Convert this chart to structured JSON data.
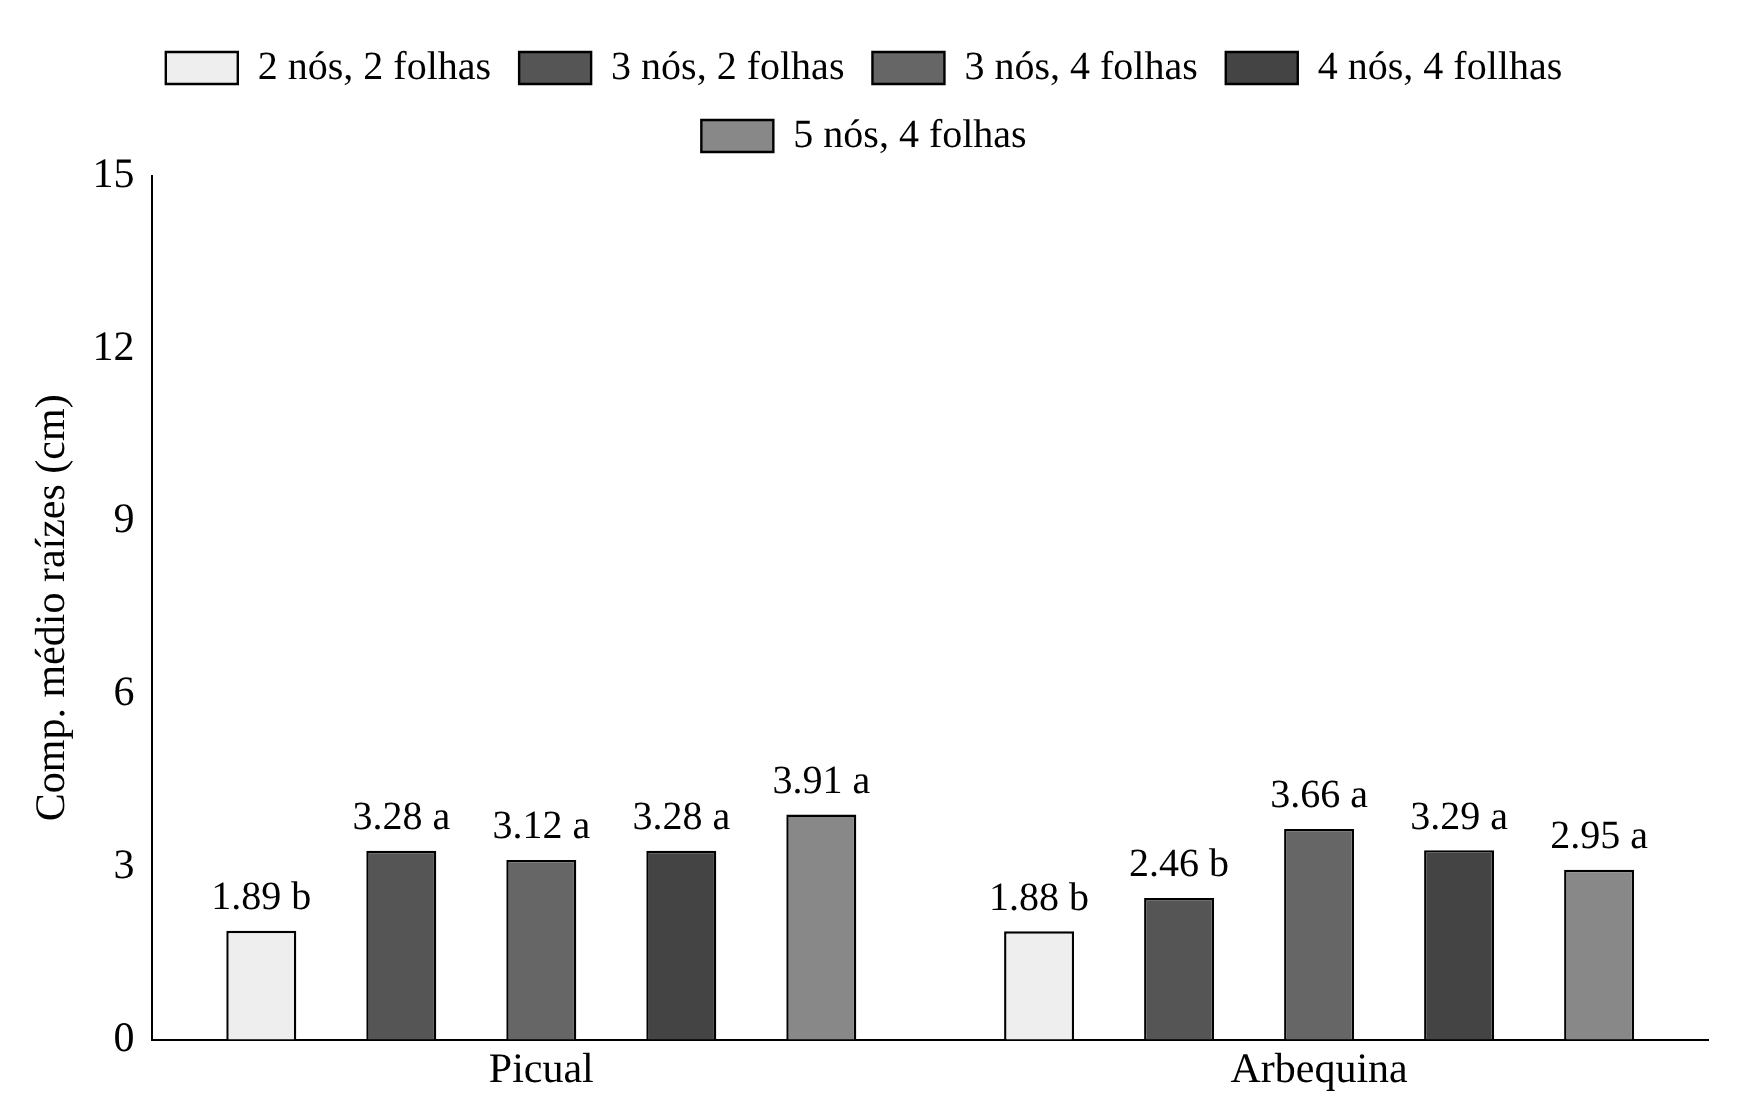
{
  "chart_data": {
    "type": "bar",
    "ylabel": "Comp. médio raízes (cm)",
    "categories": [
      "Picual",
      "Arbequina"
    ],
    "ylim": [
      0,
      15
    ],
    "yticks": [
      0,
      3,
      6,
      9,
      12,
      15
    ],
    "grid": false,
    "legend": "top",
    "series": [
      {
        "name": "2 nós, 2 folhas",
        "color": "#eeeeee",
        "values": [
          1.89,
          1.88
        ],
        "value_labels": [
          "1.89 b",
          "1.88 b"
        ]
      },
      {
        "name": "3 nós, 2 folhas",
        "color": "#555555",
        "values": [
          3.28,
          2.46
        ],
        "value_labels": [
          "3.28 a",
          "2.46 b"
        ]
      },
      {
        "name": "3 nós, 4 folhas",
        "color": "#666666",
        "values": [
          3.12,
          3.66
        ],
        "value_labels": [
          "3.12 a",
          "3.66 a"
        ]
      },
      {
        "name": "4 nós, 4 follhas",
        "color": "#444444",
        "values": [
          3.28,
          3.29
        ],
        "value_labels": [
          "3.28 a",
          "3.29 a"
        ]
      },
      {
        "name": "5 nós, 4 folhas",
        "color": "#888888",
        "values": [
          3.91,
          2.95
        ],
        "value_labels": [
          "3.91 a",
          "2.95 a"
        ]
      }
    ]
  }
}
